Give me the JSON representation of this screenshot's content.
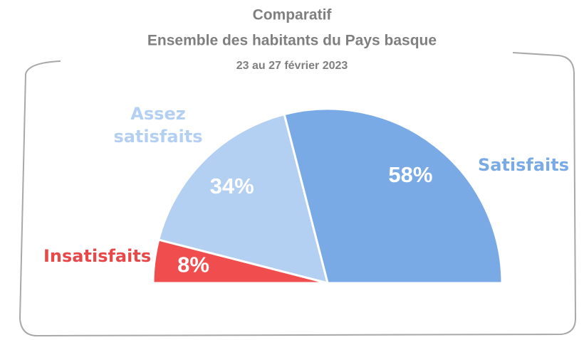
{
  "chart_data": {
    "type": "pie",
    "half": true,
    "title": "Comparatif",
    "subtitle": "Ensemble des habitants du Pays basque",
    "date": "23 au 27 février 2023",
    "categories": [
      "Satisfaits",
      "Assez satisfaits",
      "Insatisfaits"
    ],
    "values": [
      58,
      34,
      8
    ],
    "value_labels": [
      "58%",
      "34%",
      "8%"
    ],
    "colors": [
      "#7aaae6",
      "#b3cff2",
      "#f04e4e"
    ],
    "label_colors": [
      "#7aaae6",
      "#b3cff2",
      "#e84848"
    ]
  }
}
